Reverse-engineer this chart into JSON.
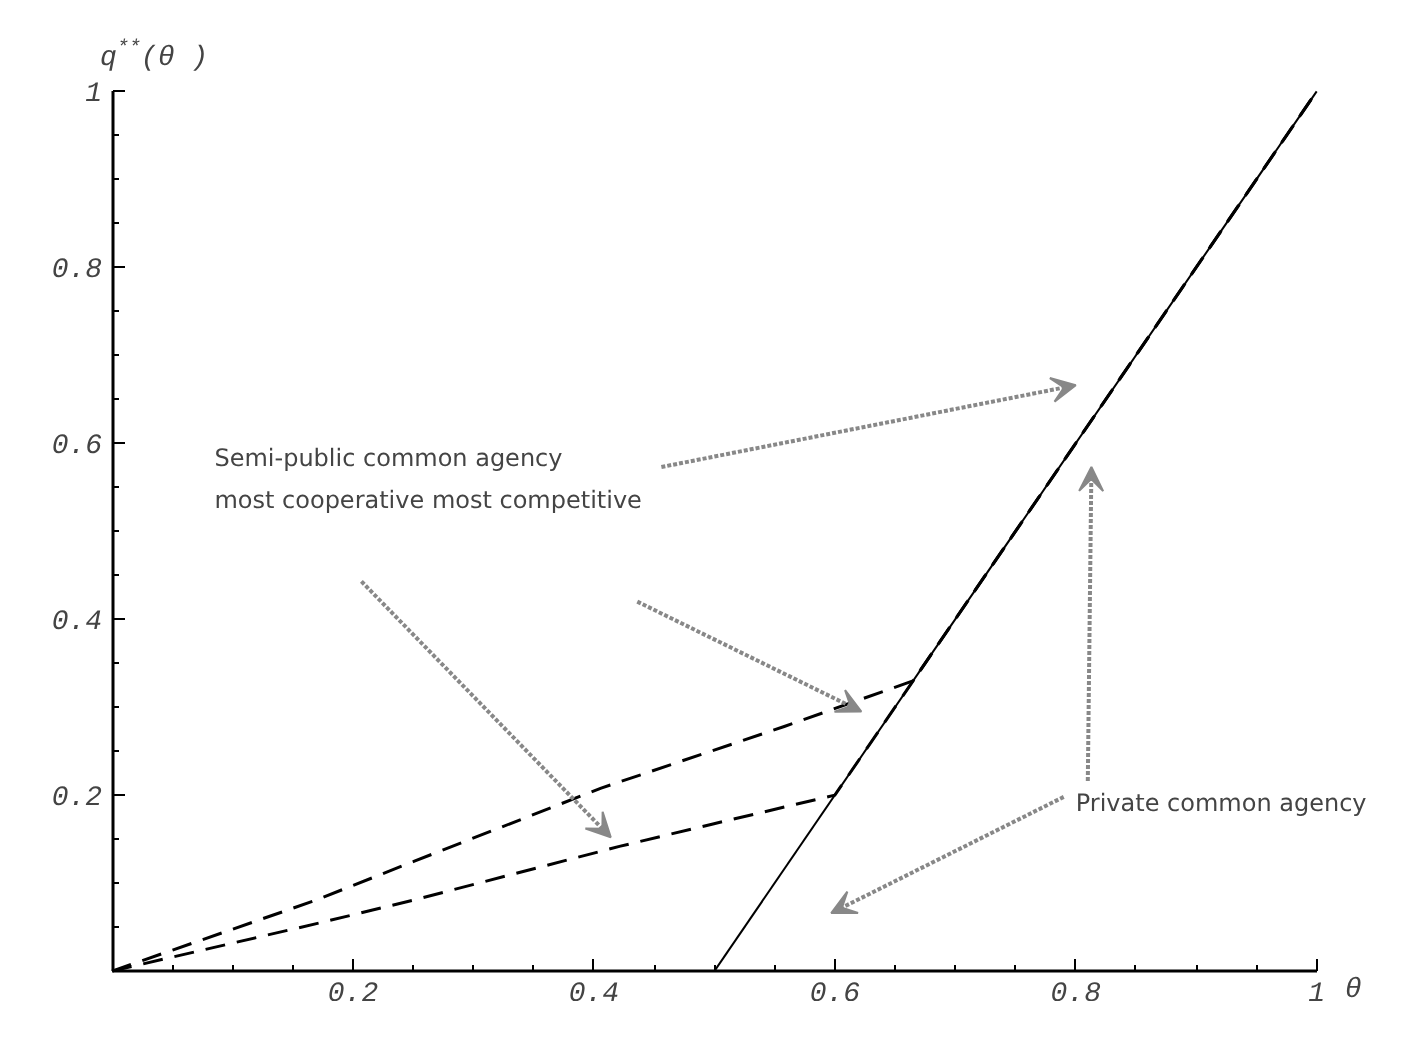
{
  "chart_data": {
    "type": "line",
    "xlabel": "θ",
    "ylabel": "q$^{**}$(θ )",
    "xlim": [
      0,
      1
    ],
    "ylim": [
      0,
      1
    ],
    "xticks": [
      0.2,
      0.4,
      0.6,
      0.8,
      1
    ],
    "yticks": [
      0.2,
      0.4,
      0.6,
      0.8,
      1
    ],
    "grid": false,
    "series": [
      {
        "color": "#000000",
        "line_style": "solid",
        "x": [
          0.5,
          1
        ],
        "values": [
          0,
          1
        ]
      },
      {
        "color": "#000000",
        "line_style": "dashed",
        "x": [
          0,
          0.168,
          0.251,
          0.406,
          0.558,
          0.665,
          1
        ],
        "values": [
          0,
          0.08,
          0.125,
          0.208,
          0.278,
          0.33,
          1
        ]
      },
      {
        "color": "#000000",
        "line_style": "dashed",
        "x": [
          0,
          0.173,
          0.251,
          0.422,
          0.498,
          0.6,
          1
        ],
        "values": [
          0,
          0.055,
          0.081,
          0.142,
          0.167,
          0.2,
          1
        ]
      }
    ],
    "annotations": [
      "Semi-public common agency\nmost cooperative most competitive",
      "Private common agency"
    ]
  }
}
